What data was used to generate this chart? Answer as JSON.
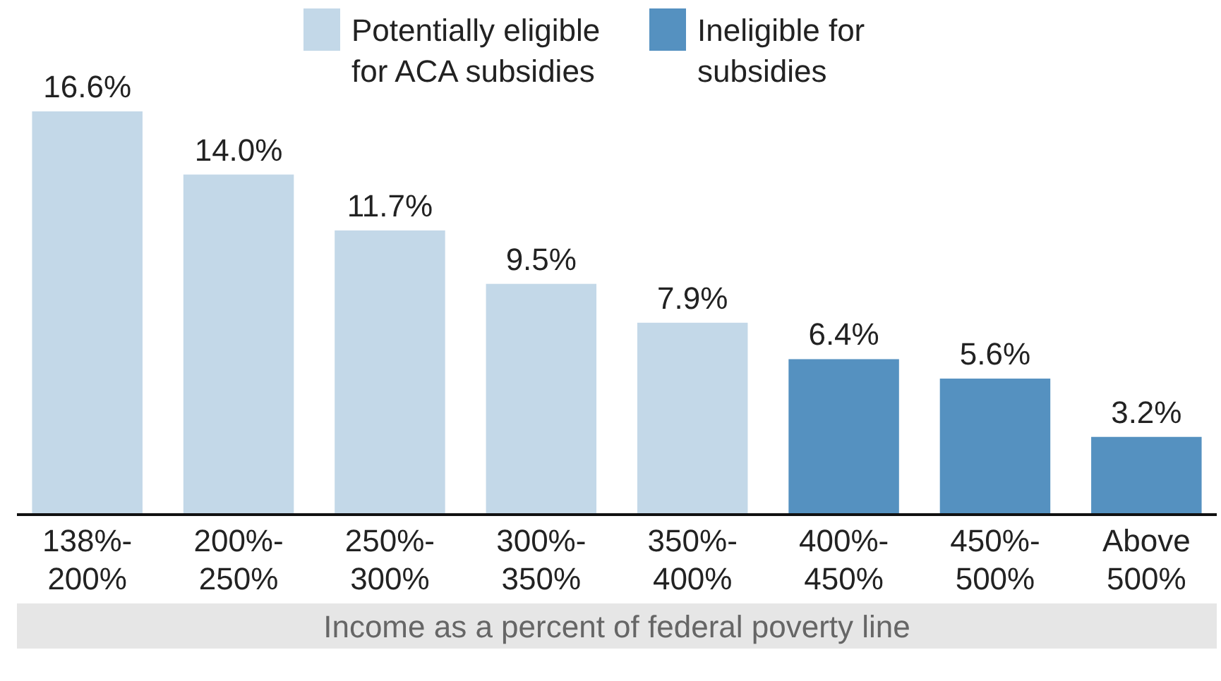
{
  "chart_data": {
    "type": "bar",
    "stacked": true,
    "xlabel": "Income as a percent of federal poverty line",
    "legend": "top right",
    "categories": [
      "138%-200%",
      "200%-250%",
      "250%-300%",
      "300%-350%",
      "350%-400%",
      "400%-450%",
      "450%-500%",
      "Above 500%"
    ],
    "series": [
      {
        "name": "Potentially eligible for ACA subsidies",
        "color": "#c3d8e8",
        "values": [
          16.6,
          14.0,
          11.7,
          9.5,
          7.9,
          null,
          null,
          null
        ],
        "value_labels": [
          "16.6%",
          "14.0%",
          "11.7%",
          "9.5%",
          "7.9%",
          null,
          null,
          null
        ]
      },
      {
        "name": "Ineligible for subsidies",
        "color": "#5591c0",
        "values": [
          null,
          null,
          null,
          null,
          null,
          6.4,
          5.6,
          3.2
        ],
        "value_labels": [
          null,
          null,
          null,
          null,
          null,
          "6.4%",
          "5.6%",
          "3.2%"
        ]
      }
    ]
  }
}
